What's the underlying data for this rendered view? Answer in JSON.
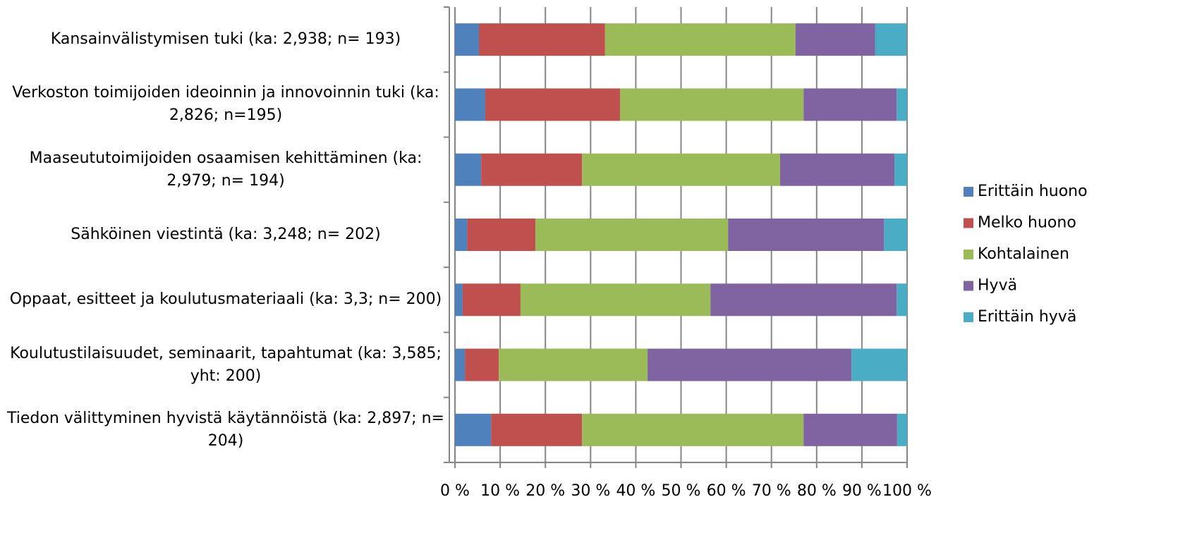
{
  "chart_data": {
    "type": "stacked_bar_horizontal",
    "categories": [
      "Kansainvälistymisen tuki (ka: 2,938; n= 193)",
      "Verkoston toimijoiden ideoinnin ja innovoinnin tuki (ka: 2,826; n=195)",
      "Maaseututoimijoiden osaamisen kehittäminen (ka: 2,979; n= 194)",
      "Sähköinen viestintä (ka: 3,248; n= 202)",
      "Oppaat, esitteet ja koulutusmateriaali (ka: 3,3; n= 200)",
      "Koulutustilaisuudet, seminaarit, tapahtumat (ka: 3,585; yht: 200)",
      "Tiedon välittyminen hyvistä käytännöistä (ka: 2,897; n= 204)"
    ],
    "series": [
      {
        "name": "Erittäin huono",
        "color": "#4f81bd",
        "values": [
          5.3,
          6.7,
          5.8,
          2.7,
          1.7,
          2.2,
          8.0
        ]
      },
      {
        "name": "Melko huono",
        "color": "#c0504d",
        "values": [
          27.9,
          29.8,
          22.3,
          15.1,
          12.8,
          7.5,
          20.1
        ]
      },
      {
        "name": "Kohtalainen",
        "color": "#9bbb59",
        "values": [
          42.1,
          40.6,
          43.8,
          42.6,
          42.0,
          32.9,
          49.0
        ]
      },
      {
        "name": "Hyvä",
        "color": "#8064a2",
        "values": [
          17.6,
          20.6,
          25.3,
          34.5,
          41.2,
          45.1,
          20.7
        ]
      },
      {
        "name": "Erittäin hyvä",
        "color": "#4bacc6",
        "values": [
          7.0,
          2.3,
          2.8,
          5.1,
          2.3,
          12.3,
          2.2
        ]
      }
    ],
    "xlim": [
      0,
      100
    ],
    "xticks": [
      {
        "value": 0,
        "label": "0 %"
      },
      {
        "value": 10,
        "label": "10 %"
      },
      {
        "value": 20,
        "label": "20 %"
      },
      {
        "value": 30,
        "label": "30 %"
      },
      {
        "value": 40,
        "label": "40 %"
      },
      {
        "value": 50,
        "label": "50 %"
      },
      {
        "value": 60,
        "label": "60 %"
      },
      {
        "value": 70,
        "label": "70 %"
      },
      {
        "value": 80,
        "label": "80 %"
      },
      {
        "value": 90,
        "label": "90 %"
      },
      {
        "value": 100,
        "label": "100 %"
      }
    ],
    "grid": true,
    "legend": "right"
  }
}
